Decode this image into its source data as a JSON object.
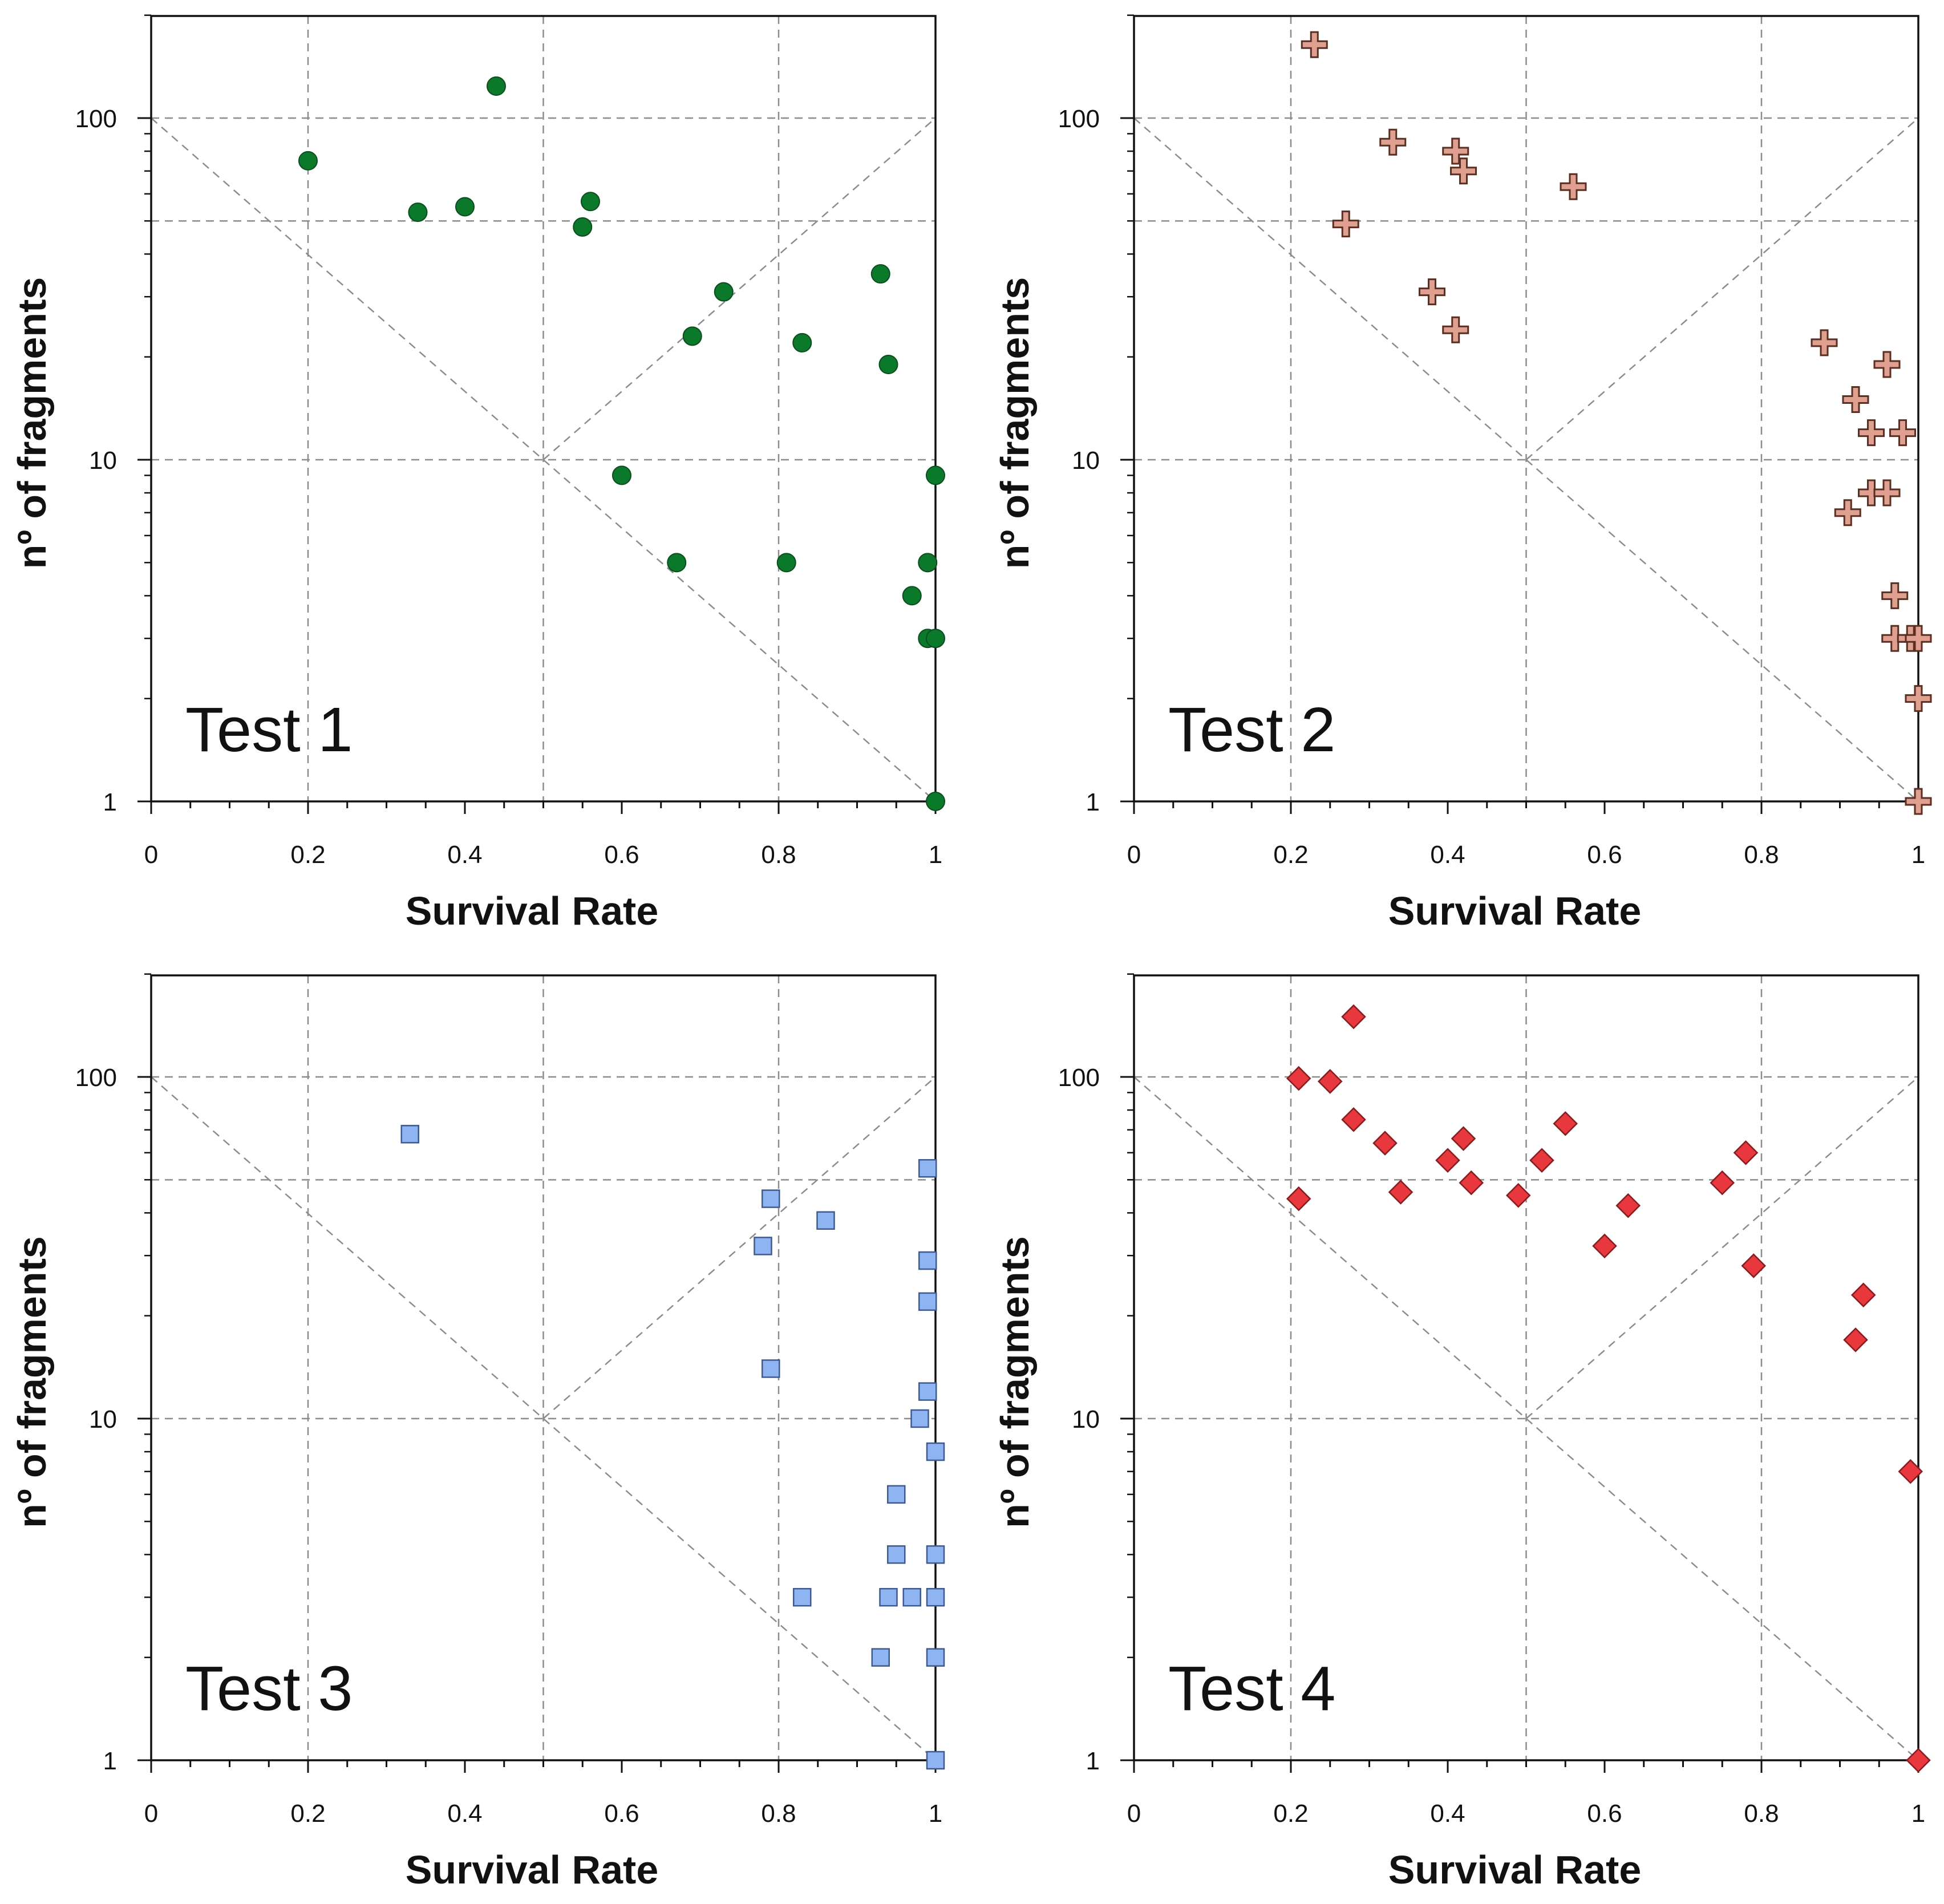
{
  "chart_data": [
    {
      "type": "scatter",
      "title": "Test 1",
      "xlabel": "Survival Rate",
      "ylabel": "nº of fragments",
      "x_ticks": [
        "0",
        "0.2",
        "0.4",
        "0.6",
        "0.8",
        "1"
      ],
      "y_ticks": [
        "1",
        "10",
        "100"
      ],
      "xlim": [
        0,
        1
      ],
      "ylim": [
        1,
        200
      ],
      "y_scale": "log",
      "grid": true,
      "marker": "circle",
      "color": "#0a7a2a",
      "series": [
        {
          "values": [
            [
              0.2,
              75
            ],
            [
              0.34,
              53
            ],
            [
              0.4,
              55
            ],
            [
              0.44,
              124
            ],
            [
              0.55,
              48
            ],
            [
              0.56,
              57
            ],
            [
              0.6,
              9
            ],
            [
              0.67,
              5
            ],
            [
              0.69,
              23
            ],
            [
              0.73,
              31
            ],
            [
              0.81,
              5
            ],
            [
              0.83,
              22
            ],
            [
              0.93,
              35
            ],
            [
              0.94,
              19
            ],
            [
              0.97,
              4
            ],
            [
              0.99,
              3
            ],
            [
              0.99,
              5
            ],
            [
              1.0,
              3
            ],
            [
              1.0,
              9
            ],
            [
              1.0,
              1
            ]
          ]
        }
      ]
    },
    {
      "type": "scatter",
      "title": "Test 2",
      "xlabel": "Survival Rate",
      "ylabel": "nº of fragments",
      "x_ticks": [
        "0",
        "0.2",
        "0.4",
        "0.6",
        "0.8",
        "1"
      ],
      "y_ticks": [
        "1",
        "10",
        "100"
      ],
      "xlim": [
        0,
        1
      ],
      "ylim": [
        1,
        200
      ],
      "y_scale": "log",
      "grid": true,
      "marker": "plus",
      "color": "#e0a090",
      "series": [
        {
          "values": [
            [
              0.23,
              164
            ],
            [
              0.27,
              49
            ],
            [
              0.33,
              85
            ],
            [
              0.38,
              31
            ],
            [
              0.41,
              24
            ],
            [
              0.41,
              80
            ],
            [
              0.42,
              70
            ],
            [
              0.56,
              63
            ],
            [
              0.88,
              22
            ],
            [
              0.91,
              7
            ],
            [
              0.92,
              15
            ],
            [
              0.94,
              8
            ],
            [
              0.94,
              12
            ],
            [
              0.96,
              19
            ],
            [
              0.96,
              8
            ],
            [
              0.97,
              4
            ],
            [
              0.97,
              3
            ],
            [
              0.98,
              12
            ],
            [
              0.99,
              3
            ],
            [
              1.0,
              3
            ],
            [
              1.0,
              2
            ],
            [
              1.0,
              1
            ]
          ]
        }
      ]
    },
    {
      "type": "scatter",
      "title": "Test 3",
      "xlabel": "Survival Rate",
      "ylabel": "nº of fragments",
      "x_ticks": [
        "0",
        "0.2",
        "0.4",
        "0.6",
        "0.8",
        "1"
      ],
      "y_ticks": [
        "1",
        "10",
        "100"
      ],
      "xlim": [
        0,
        1
      ],
      "ylim": [
        1,
        200
      ],
      "y_scale": "log",
      "grid": true,
      "marker": "square",
      "color": "#8fb4f2",
      "series": [
        {
          "values": [
            [
              0.33,
              68
            ],
            [
              0.78,
              32
            ],
            [
              0.79,
              44
            ],
            [
              0.79,
              14
            ],
            [
              0.83,
              3
            ],
            [
              0.86,
              38
            ],
            [
              0.93,
              2
            ],
            [
              0.94,
              3
            ],
            [
              0.95,
              6
            ],
            [
              0.95,
              4
            ],
            [
              0.97,
              3
            ],
            [
              0.98,
              10
            ],
            [
              0.99,
              12
            ],
            [
              0.99,
              22
            ],
            [
              0.99,
              29
            ],
            [
              0.99,
              54
            ],
            [
              1.0,
              3
            ],
            [
              1.0,
              2
            ],
            [
              1.0,
              4
            ],
            [
              1.0,
              8
            ],
            [
              1.0,
              1
            ]
          ]
        }
      ]
    },
    {
      "type": "scatter",
      "title": "Test 4",
      "xlabel": "Survival Rate",
      "ylabel": "nº of fragments",
      "x_ticks": [
        "0",
        "0.2",
        "0.4",
        "0.6",
        "0.8",
        "1"
      ],
      "y_ticks": [
        "1",
        "10",
        "100"
      ],
      "xlim": [
        0,
        1
      ],
      "ylim": [
        1,
        200
      ],
      "y_scale": "log",
      "grid": true,
      "marker": "diamond",
      "color": "#e8383d",
      "series": [
        {
          "values": [
            [
              0.21,
              99
            ],
            [
              0.21,
              44
            ],
            [
              0.25,
              97
            ],
            [
              0.28,
              150
            ],
            [
              0.28,
              75
            ],
            [
              0.32,
              64
            ],
            [
              0.34,
              46
            ],
            [
              0.4,
              57
            ],
            [
              0.42,
              66
            ],
            [
              0.43,
              49
            ],
            [
              0.49,
              45
            ],
            [
              0.52,
              57
            ],
            [
              0.55,
              73
            ],
            [
              0.6,
              32
            ],
            [
              0.63,
              42
            ],
            [
              0.75,
              49
            ],
            [
              0.78,
              60
            ],
            [
              0.79,
              28
            ],
            [
              0.92,
              17
            ],
            [
              0.93,
              23
            ],
            [
              0.99,
              7
            ],
            [
              1.0,
              1
            ]
          ]
        }
      ]
    }
  ]
}
